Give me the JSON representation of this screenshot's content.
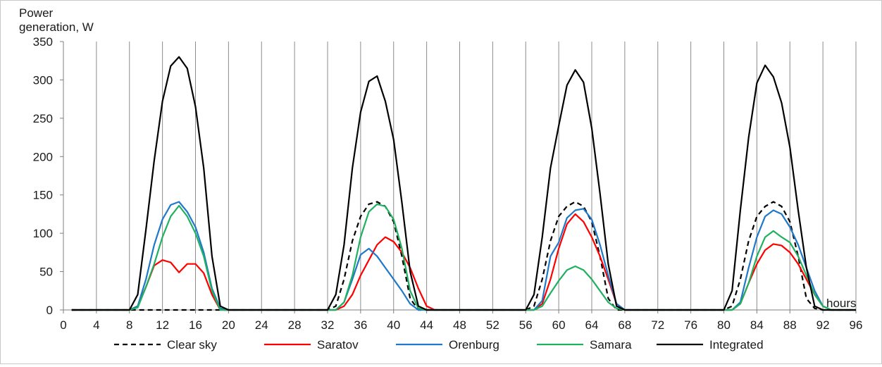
{
  "chart_data": {
    "type": "line",
    "ylabel_line1": "Power",
    "ylabel_line2": "generation, W",
    "xlabel": "hours",
    "xlim": [
      0,
      96
    ],
    "ylim": [
      0,
      350
    ],
    "xticks": [
      0,
      4,
      8,
      12,
      16,
      20,
      24,
      28,
      32,
      36,
      40,
      44,
      48,
      52,
      56,
      60,
      64,
      68,
      72,
      76,
      80,
      84,
      88,
      92,
      96
    ],
    "yticks": [
      0,
      50,
      100,
      150,
      200,
      250,
      300,
      350
    ],
    "grid": "vertical",
    "legend_position": "bottom",
    "x": [
      1,
      2,
      3,
      4,
      5,
      6,
      7,
      8,
      9,
      10,
      11,
      12,
      13,
      14,
      15,
      16,
      17,
      18,
      19,
      20,
      21,
      22,
      23,
      24,
      25,
      26,
      27,
      28,
      29,
      30,
      31,
      32,
      33,
      34,
      35,
      36,
      37,
      38,
      39,
      40,
      41,
      42,
      43,
      44,
      45,
      46,
      47,
      48,
      49,
      50,
      51,
      52,
      53,
      54,
      55,
      56,
      57,
      58,
      59,
      60,
      61,
      62,
      63,
      64,
      65,
      66,
      67,
      68,
      69,
      70,
      71,
      72,
      73,
      74,
      75,
      76,
      77,
      78,
      79,
      80,
      81,
      82,
      83,
      84,
      85,
      86,
      87,
      88,
      89,
      90,
      91,
      92,
      93,
      94,
      95,
      96
    ],
    "series": [
      {
        "name": "Clear sky",
        "color": "#000000",
        "dash": true,
        "values": [
          0,
          0,
          0,
          0,
          0,
          0,
          0,
          0,
          0,
          0,
          0,
          0,
          0,
          0,
          0,
          0,
          0,
          0,
          0,
          0,
          0,
          0,
          0,
          0,
          0,
          0,
          0,
          0,
          0,
          0,
          0,
          0,
          5,
          40,
          90,
          122,
          138,
          141,
          135,
          115,
          70,
          15,
          0,
          0,
          0,
          0,
          0,
          0,
          0,
          0,
          0,
          0,
          0,
          0,
          0,
          0,
          5,
          40,
          90,
          122,
          135,
          141,
          135,
          115,
          70,
          15,
          0,
          0,
          0,
          0,
          0,
          0,
          0,
          0,
          0,
          0,
          0,
          0,
          0,
          0,
          5,
          40,
          90,
          122,
          135,
          141,
          135,
          115,
          70,
          15,
          2,
          0,
          0,
          0,
          0,
          0
        ]
      },
      {
        "name": "Saratov",
        "color": "#ff0000",
        "dash": false,
        "values": [
          0,
          0,
          0,
          0,
          0,
          0,
          0,
          0,
          5,
          30,
          58,
          65,
          62,
          49,
          60,
          60,
          48,
          20,
          0,
          0,
          0,
          0,
          0,
          0,
          0,
          0,
          0,
          0,
          0,
          0,
          0,
          0,
          0,
          5,
          20,
          45,
          65,
          85,
          95,
          89,
          75,
          55,
          28,
          5,
          0,
          0,
          0,
          0,
          0,
          0,
          0,
          0,
          0,
          0,
          0,
          0,
          0,
          8,
          40,
          80,
          112,
          125,
          115,
          95,
          70,
          40,
          8,
          0,
          0,
          0,
          0,
          0,
          0,
          0,
          0,
          0,
          0,
          0,
          0,
          0,
          0,
          8,
          35,
          60,
          78,
          86,
          84,
          75,
          60,
          40,
          20,
          5,
          0,
          0,
          0,
          0
        ]
      },
      {
        "name": "Orenburg",
        "color": "#1f78c8",
        "dash": false,
        "values": [
          0,
          0,
          0,
          0,
          0,
          0,
          0,
          0,
          5,
          40,
          85,
          118,
          137,
          141,
          128,
          108,
          75,
          28,
          2,
          0,
          0,
          0,
          0,
          0,
          0,
          0,
          0,
          0,
          0,
          0,
          0,
          0,
          0,
          10,
          40,
          72,
          80,
          70,
          55,
          40,
          25,
          8,
          0,
          0,
          0,
          0,
          0,
          0,
          0,
          0,
          0,
          0,
          0,
          0,
          0,
          0,
          0,
          12,
          70,
          88,
          120,
          130,
          132,
          118,
          85,
          45,
          8,
          0,
          0,
          0,
          0,
          0,
          0,
          0,
          0,
          0,
          0,
          0,
          0,
          0,
          0,
          10,
          55,
          95,
          122,
          130,
          125,
          108,
          85,
          55,
          25,
          5,
          0,
          0,
          0,
          0
        ]
      },
      {
        "name": "Samara",
        "color": "#1fb060",
        "dash": false,
        "values": [
          0,
          0,
          0,
          0,
          0,
          0,
          0,
          0,
          3,
          30,
          60,
          95,
          122,
          136,
          122,
          100,
          70,
          25,
          0,
          0,
          0,
          0,
          0,
          0,
          0,
          0,
          0,
          0,
          0,
          0,
          0,
          0,
          0,
          10,
          45,
          95,
          128,
          138,
          135,
          118,
          80,
          25,
          2,
          0,
          0,
          0,
          0,
          0,
          0,
          0,
          0,
          0,
          0,
          0,
          0,
          0,
          0,
          5,
          22,
          38,
          52,
          57,
          52,
          40,
          25,
          10,
          2,
          0,
          0,
          0,
          0,
          0,
          0,
          0,
          0,
          0,
          0,
          0,
          0,
          0,
          0,
          8,
          35,
          70,
          95,
          103,
          95,
          88,
          70,
          45,
          20,
          5,
          0,
          0,
          0,
          0
        ]
      },
      {
        "name": "Integrated",
        "color": "#000000",
        "dash": false,
        "values": [
          0,
          0,
          0,
          0,
          0,
          0,
          0,
          0,
          20,
          105,
          195,
          272,
          318,
          330,
          315,
          265,
          185,
          70,
          5,
          0,
          0,
          0,
          0,
          0,
          0,
          0,
          0,
          0,
          0,
          0,
          0,
          0,
          20,
          85,
          185,
          258,
          298,
          305,
          272,
          222,
          140,
          50,
          5,
          0,
          0,
          0,
          0,
          0,
          0,
          0,
          0,
          0,
          0,
          0,
          0,
          0,
          20,
          95,
          185,
          240,
          293,
          313,
          297,
          237,
          152,
          60,
          5,
          0,
          0,
          0,
          0,
          0,
          0,
          0,
          0,
          0,
          0,
          0,
          0,
          0,
          25,
          130,
          225,
          296,
          319,
          304,
          270,
          212,
          130,
          55,
          5,
          0,
          0,
          0,
          0,
          0
        ]
      }
    ]
  }
}
